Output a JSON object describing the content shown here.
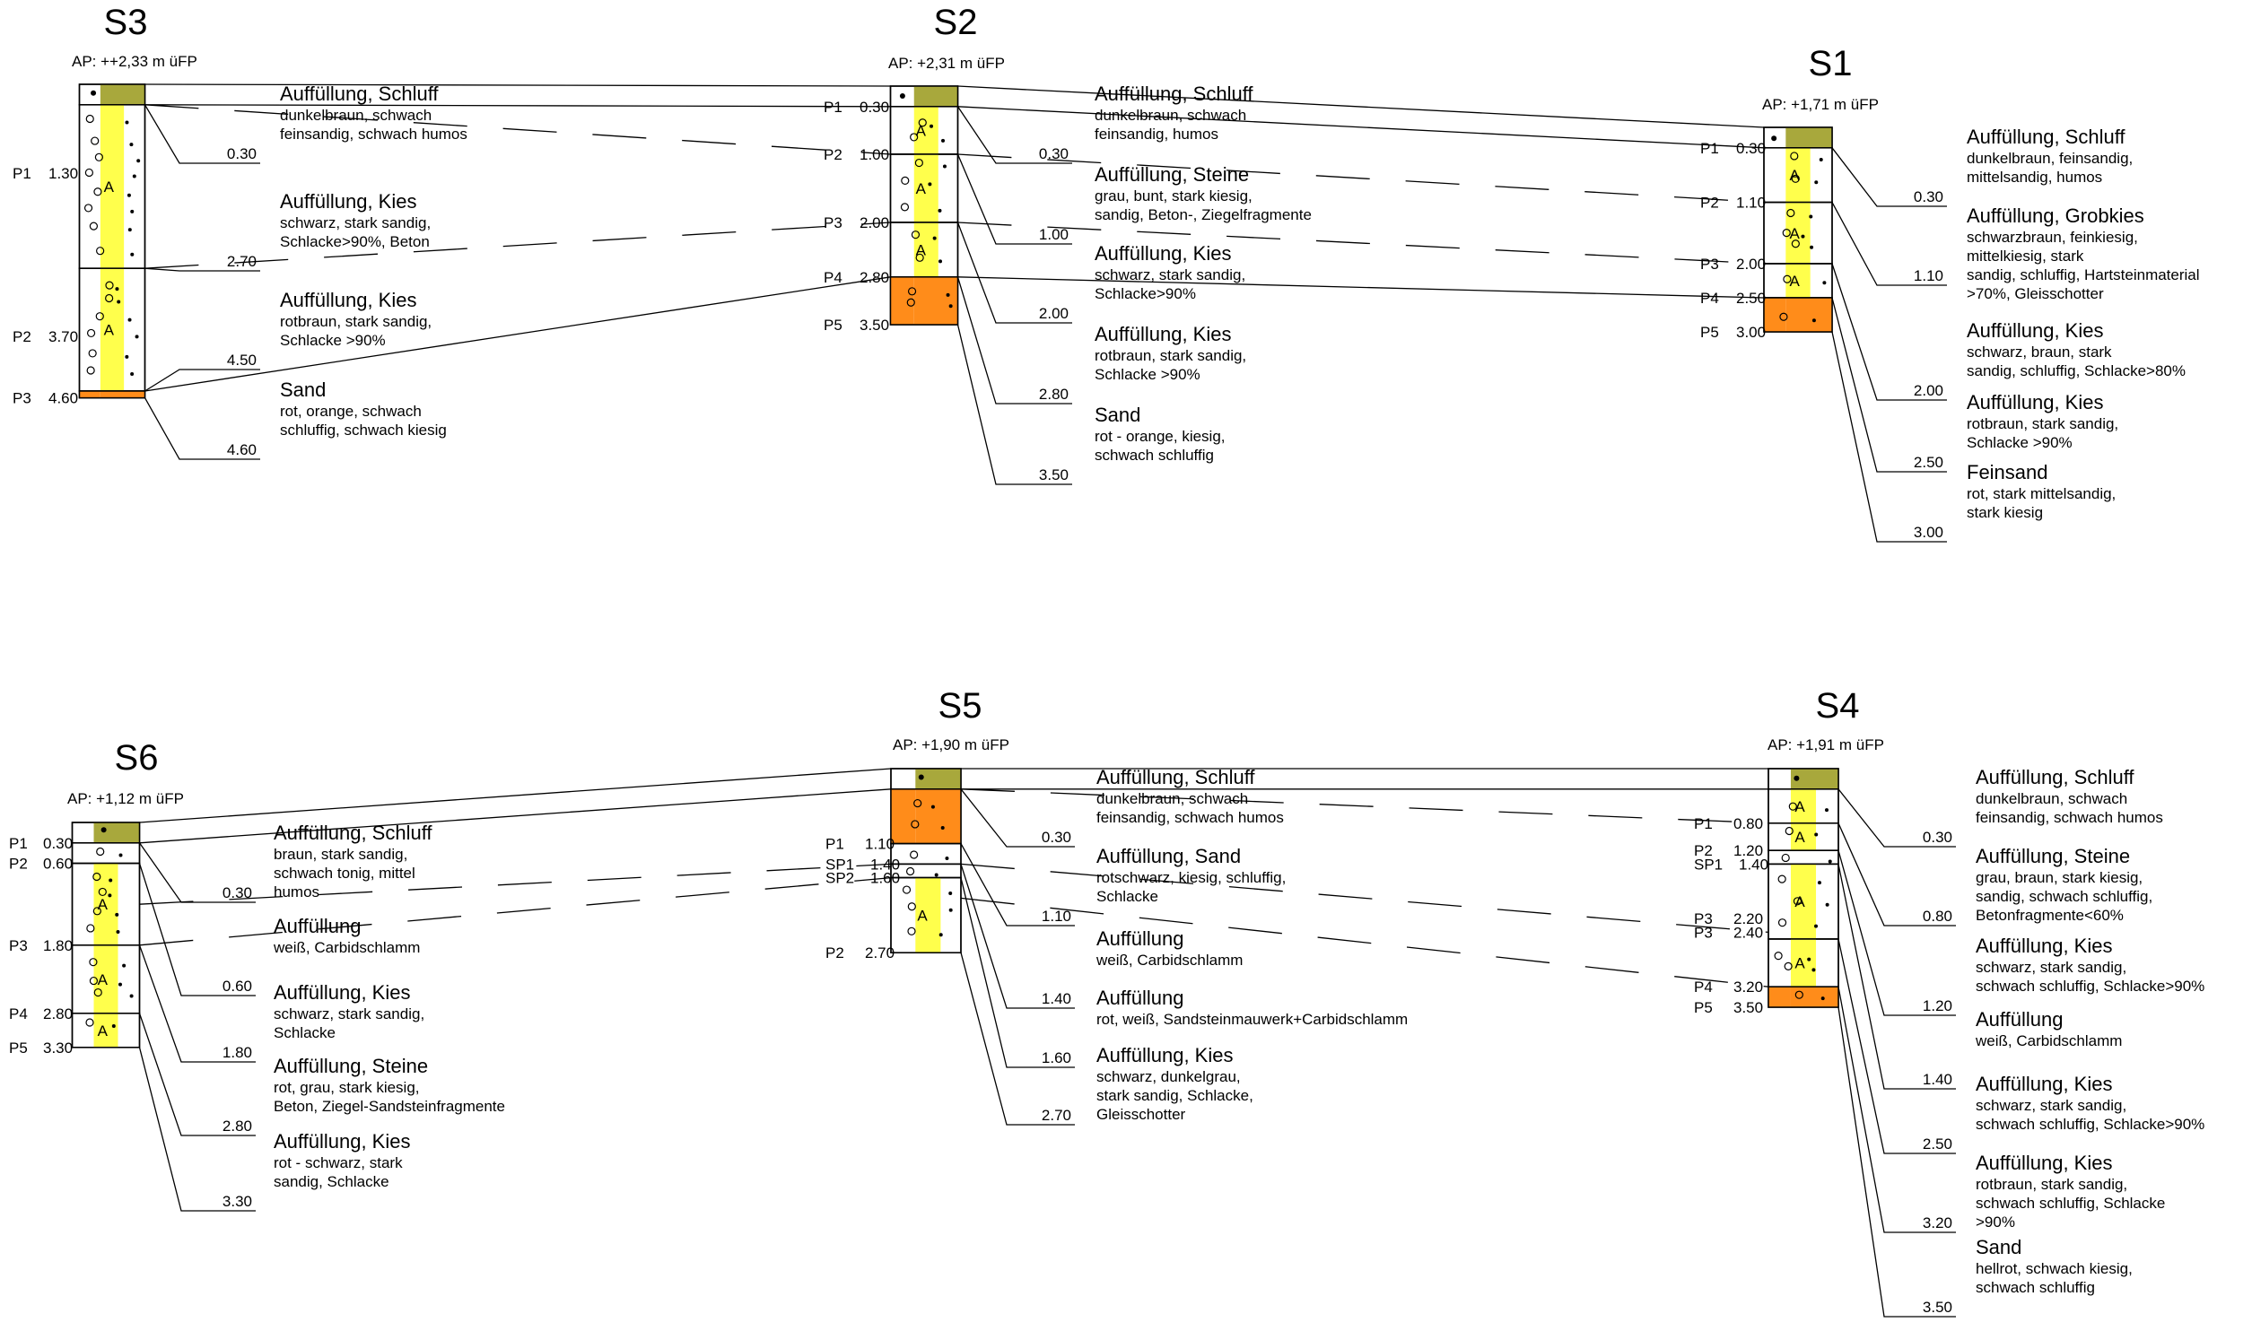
{
  "colors": {
    "topsoil": "#a8a83c",
    "fill": "#ffff4c",
    "sand": "#ff8c1a",
    "line": "#000000",
    "background": "#ffffff"
  },
  "boreholes": [
    {
      "id": "S3",
      "ap": "AP: ++2,33 m üFP",
      "total": 4.6,
      "layers": [
        {
          "top": 0,
          "bottom": 0.3,
          "kind": "topsoil",
          "depth_label": "0.30",
          "heading": "Auffüllung, Schluff",
          "desc": [
            "dunkelbraun, schwach",
            "feinsandig, schwach humos"
          ]
        },
        {
          "top": 0.3,
          "bottom": 2.7,
          "kind": "fill",
          "depth_label": "2.70",
          "heading": "Auffüllung, Kies",
          "desc": [
            "schwarz, stark sandig,",
            "Schlacke>90%, Beton"
          ]
        },
        {
          "top": 2.7,
          "bottom": 4.5,
          "kind": "fill",
          "depth_label": "4.50",
          "heading": "Auffüllung, Kies",
          "desc": [
            "rotbraun, stark sandig,",
            "Schlacke >90%"
          ]
        },
        {
          "top": 4.5,
          "bottom": 4.6,
          "kind": "sand",
          "depth_label": "4.60",
          "heading": "Sand",
          "desc": [
            "rot, orange, schwach",
            "schluffig, schwach kiesig"
          ]
        }
      ],
      "samples": [
        {
          "name": "P1",
          "depth": "1.30",
          "at": 1.3
        },
        {
          "name": "P2",
          "depth": "3.70",
          "at": 3.7
        },
        {
          "name": "P3",
          "depth": "4.60",
          "at": 4.6
        }
      ]
    },
    {
      "id": "S2",
      "ap": "AP: +2,31 m üFP",
      "total": 3.5,
      "layers": [
        {
          "top": 0,
          "bottom": 0.3,
          "kind": "topsoil",
          "depth_label": "0.30",
          "heading": "Auffüllung, Schluff",
          "desc": [
            "dunkelbraun, schwach",
            "feinsandig, humos"
          ]
        },
        {
          "top": 0.3,
          "bottom": 1.0,
          "kind": "fill",
          "depth_label": "1.00",
          "heading": "Auffüllung, Steine",
          "desc": [
            "grau, bunt, stark kiesig,",
            "sandig, Beton-, Ziegelfragmente"
          ]
        },
        {
          "top": 1.0,
          "bottom": 2.0,
          "kind": "fill",
          "depth_label": "2.00",
          "heading": "Auffüllung, Kies",
          "desc": [
            "schwarz, stark sandig,",
            "Schlacke>90%"
          ]
        },
        {
          "top": 2.0,
          "bottom": 2.8,
          "kind": "fill",
          "depth_label": "2.80",
          "heading": "Auffüllung, Kies",
          "desc": [
            "rotbraun, stark sandig,",
            "Schlacke >90%"
          ]
        },
        {
          "top": 2.8,
          "bottom": 3.5,
          "kind": "sand",
          "depth_label": "3.50",
          "heading": "Sand",
          "desc": [
            "rot - orange, kiesig,",
            "schwach schluffig"
          ]
        }
      ],
      "samples": [
        {
          "name": "P1",
          "depth": "0.30",
          "at": 0.3
        },
        {
          "name": "P2",
          "depth": "1.00",
          "at": 1.0
        },
        {
          "name": "P3",
          "depth": "2.00",
          "at": 2.0
        },
        {
          "name": "P4",
          "depth": "2.80",
          "at": 2.8
        },
        {
          "name": "P5",
          "depth": "3.50",
          "at": 3.5
        }
      ]
    },
    {
      "id": "S1",
      "ap": "AP: +1,71 m üFP",
      "total": 3.0,
      "layers": [
        {
          "top": 0,
          "bottom": 0.3,
          "kind": "topsoil",
          "depth_label": "0.30",
          "heading": "Auffüllung, Schluff",
          "desc": [
            "dunkelbraun, feinsandig,",
            "mittelsandig, humos"
          ]
        },
        {
          "top": 0.3,
          "bottom": 1.1,
          "kind": "fill",
          "depth_label": "1.10",
          "heading": "Auffüllung, Grobkies",
          "desc": [
            "schwarzbraun, feinkiesig,",
            "mittelkiesig, stark",
            "sandig, schluffig, Hartsteinmaterial",
            ">70%, Gleisschotter"
          ]
        },
        {
          "top": 1.1,
          "bottom": 2.0,
          "kind": "fill",
          "depth_label": "2.00",
          "heading": "Auffüllung, Kies",
          "desc": [
            "schwarz, braun, stark",
            "sandig, schluffig, Schlacke>80%"
          ]
        },
        {
          "top": 2.0,
          "bottom": 2.5,
          "kind": "fill",
          "depth_label": "2.50",
          "heading": "Auffüllung, Kies",
          "desc": [
            "rotbraun, stark sandig,",
            "Schlacke >90%"
          ]
        },
        {
          "top": 2.5,
          "bottom": 3.0,
          "kind": "sand",
          "depth_label": "3.00",
          "heading": "Feinsand",
          "desc": [
            "rot, stark mittelsandig,",
            "stark kiesig"
          ]
        }
      ],
      "samples": [
        {
          "name": "P1",
          "depth": "0.30",
          "at": 0.3
        },
        {
          "name": "P2",
          "depth": "1.10",
          "at": 1.1
        },
        {
          "name": "P3",
          "depth": "2.00",
          "at": 2.0
        },
        {
          "name": "P4",
          "depth": "2.50",
          "at": 2.5
        },
        {
          "name": "P5",
          "depth": "3.00",
          "at": 3.0
        }
      ]
    },
    {
      "id": "S6",
      "ap": "AP: +1,12 m üFP",
      "total": 3.3,
      "layers": [
        {
          "top": 0,
          "bottom": 0.3,
          "kind": "topsoil",
          "depth_label": "0.30",
          "heading": "Auffüllung, Schluff",
          "desc": [
            "braun, stark sandig,",
            "schwach tonig, mittel",
            "humos"
          ]
        },
        {
          "top": 0.3,
          "bottom": 0.6,
          "kind": "white",
          "depth_label": "0.60",
          "heading": "Auffüllung",
          "desc": [
            "weiß, Carbidschlamm"
          ]
        },
        {
          "top": 0.6,
          "bottom": 1.8,
          "kind": "fill",
          "depth_label": "1.80",
          "heading": "Auffüllung, Kies",
          "desc": [
            "schwarz, stark sandig,",
            "Schlacke"
          ]
        },
        {
          "top": 1.8,
          "bottom": 2.8,
          "kind": "fill",
          "depth_label": "2.80",
          "heading": "Auffüllung, Steine",
          "desc": [
            "rot, grau, stark kiesig,",
            "Beton, Ziegel-Sandsteinfragmente"
          ]
        },
        {
          "top": 2.8,
          "bottom": 3.3,
          "kind": "fill",
          "depth_label": "3.30",
          "heading": "Auffüllung, Kies",
          "desc": [
            "rot - schwarz, stark",
            "sandig, Schlacke"
          ]
        }
      ],
      "samples": [
        {
          "name": "P1",
          "depth": "0.30",
          "at": 0.3
        },
        {
          "name": "P2",
          "depth": "0.60",
          "at": 0.6
        },
        {
          "name": "P3",
          "depth": "1.80",
          "at": 1.8
        },
        {
          "name": "P4",
          "depth": "2.80",
          "at": 2.8
        },
        {
          "name": "P5",
          "depth": "3.30",
          "at": 3.3
        }
      ]
    },
    {
      "id": "S5",
      "ap": "AP: +1,90 m üFP",
      "total": 2.7,
      "layers": [
        {
          "top": 0,
          "bottom": 0.3,
          "kind": "topsoil",
          "depth_label": "0.30",
          "heading": "Auffüllung, Schluff",
          "desc": [
            "dunkelbraun, schwach",
            "feinsandig, schwach humos"
          ]
        },
        {
          "top": 0.3,
          "bottom": 1.1,
          "kind": "sand",
          "depth_label": "1.10",
          "heading": "Auffüllung, Sand",
          "desc": [
            "rotschwarz, kiesig, schluffig,",
            "Schlacke"
          ]
        },
        {
          "top": 1.1,
          "bottom": 1.4,
          "kind": "white",
          "depth_label": "1.40",
          "heading": "Auffüllung",
          "desc": [
            "weiß, Carbidschlamm"
          ]
        },
        {
          "top": 1.4,
          "bottom": 1.6,
          "kind": "white",
          "depth_label": "1.60",
          "heading": "Auffüllung",
          "desc": [
            "rot, weiß, Sandsteinmauwerk+Carbidschlamm"
          ]
        },
        {
          "top": 1.6,
          "bottom": 2.7,
          "kind": "fill",
          "depth_label": "2.70",
          "heading": "Auffüllung, Kies",
          "desc": [
            "schwarz, dunkelgrau,",
            "stark sandig, Schlacke,",
            "Gleisschotter"
          ]
        }
      ],
      "samples": [
        {
          "name": "P1",
          "depth": "1.10",
          "at": 1.1
        },
        {
          "name": "SP1",
          "depth": "1.40",
          "at": 1.4
        },
        {
          "name": "SP2",
          "depth": "1.60",
          "at": 1.6
        },
        {
          "name": "P2",
          "depth": "2.70",
          "at": 2.7
        }
      ]
    },
    {
      "id": "S4",
      "ap": "AP: +1,91 m üFP",
      "total": 3.5,
      "layers": [
        {
          "top": 0,
          "bottom": 0.3,
          "kind": "topsoil",
          "depth_label": "0.30",
          "heading": "Auffüllung, Schluff",
          "desc": [
            "dunkelbraun, schwach",
            "feinsandig, schwach humos"
          ]
        },
        {
          "top": 0.3,
          "bottom": 0.8,
          "kind": "fill",
          "depth_label": "0.80",
          "heading": "Auffüllung, Steine",
          "desc": [
            "grau, braun, stark kiesig,",
            "sandig, schwach schluffig,",
            "Betonfragmente<60%"
          ]
        },
        {
          "top": 0.8,
          "bottom": 1.2,
          "kind": "fill",
          "depth_label": "1.20",
          "heading": "Auffüllung, Kies",
          "desc": [
            "schwarz, stark sandig,",
            "schwach schluffig, Schlacke>90%"
          ]
        },
        {
          "top": 1.2,
          "bottom": 1.4,
          "kind": "white",
          "depth_label": "1.40",
          "heading": "Auffüllung",
          "desc": [
            "weiß, Carbidschlamm"
          ]
        },
        {
          "top": 1.4,
          "bottom": 2.5,
          "kind": "fill",
          "depth_label": "2.50",
          "heading": "Auffüllung, Kies",
          "desc": [
            "schwarz, stark sandig,",
            "schwach schluffig, Schlacke>90%"
          ]
        },
        {
          "top": 2.5,
          "bottom": 3.2,
          "kind": "fill",
          "depth_label": "3.20",
          "heading": "Auffüllung, Kies",
          "desc": [
            "rotbraun, stark sandig,",
            "schwach schluffig, Schlacke",
            ">90%"
          ]
        },
        {
          "top": 3.2,
          "bottom": 3.5,
          "kind": "sand",
          "depth_label": "3.50",
          "heading": "Sand",
          "desc": [
            "hellrot, schwach kiesig,",
            "schwach schluffig"
          ]
        }
      ],
      "samples": [
        {
          "name": "P1",
          "depth": "0.80",
          "at": 0.8
        },
        {
          "name": "P2",
          "depth": "1.20",
          "at": 1.2
        },
        {
          "name": "SP1",
          "depth": "1.40",
          "at": 1.4
        },
        {
          "name": "P3",
          "depth": "2.20",
          "at": 2.2
        },
        {
          "name": "P3",
          "depth": "2.40",
          "at": 2.4
        },
        {
          "name": "P4",
          "depth": "3.20",
          "at": 3.2
        },
        {
          "name": "P5",
          "depth": "3.50",
          "at": 3.5
        }
      ]
    }
  ]
}
